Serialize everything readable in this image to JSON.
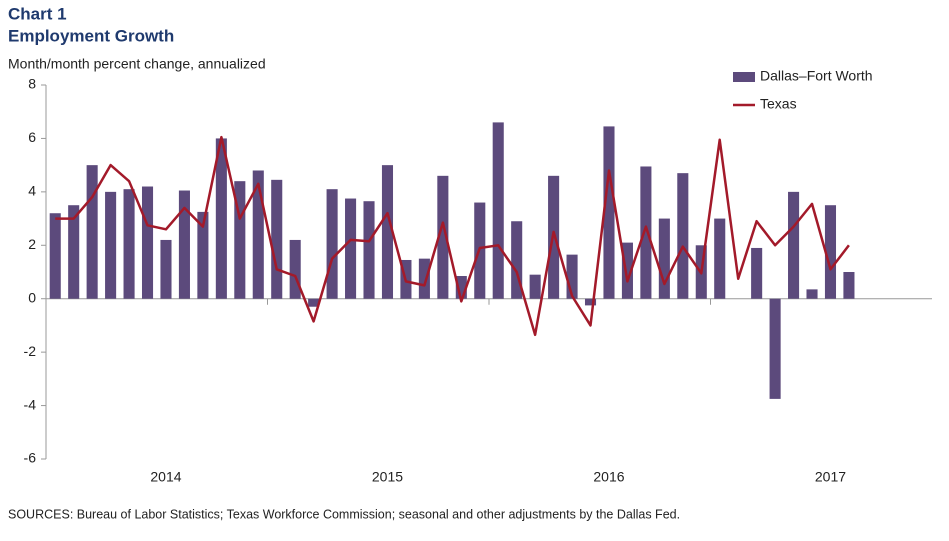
{
  "chart_data": {
    "type": "bar",
    "title": "Chart 1",
    "subtitle": "Employment Growth",
    "y_label": "Month/month  percent change, annualized",
    "source": "SOURCES: Bureau of  Labor Statistics; Texas Workforce Commission; seasonal and other adjustments by the Dallas Fed.",
    "categories": [
      null,
      null,
      null,
      null,
      null,
      null,
      "2014",
      null,
      null,
      null,
      null,
      null,
      null,
      null,
      null,
      null,
      null,
      null,
      "2015",
      null,
      null,
      null,
      null,
      null,
      null,
      null,
      null,
      null,
      null,
      null,
      "2016",
      null,
      null,
      null,
      null,
      null,
      null,
      null,
      null,
      null,
      null,
      null,
      "2017",
      null,
      null,
      null,
      null,
      null
    ],
    "series": [
      {
        "name": "Dallas–Fort Worth",
        "color": "#5c4a7c",
        "type": "bar",
        "values": [
          3.2,
          3.5,
          5.0,
          4.0,
          4.1,
          4.2,
          2.2,
          4.05,
          3.25,
          6.0,
          4.4,
          4.8,
          4.45,
          2.2,
          -0.3,
          4.1,
          3.75,
          3.65,
          5.0,
          1.45,
          1.5,
          4.6,
          0.85,
          3.6,
          6.6,
          2.9,
          0.9,
          4.6,
          1.65,
          -0.25,
          6.45,
          2.1,
          4.95,
          3.0,
          4.7,
          2.0,
          3.0,
          0,
          1.9,
          -3.75,
          4.0,
          0.35,
          3.5,
          1.0,
          null,
          null,
          null,
          null
        ]
      },
      {
        "name": "Texas",
        "color": "#a31a2a",
        "type": "line",
        "values": [
          3.0,
          3.0,
          3.8,
          5.0,
          4.4,
          2.75,
          2.6,
          3.4,
          2.7,
          6.05,
          3.0,
          4.3,
          1.1,
          0.85,
          -0.85,
          1.5,
          2.2,
          2.15,
          3.2,
          0.65,
          0.5,
          2.85,
          -0.1,
          1.9,
          2.0,
          1.0,
          -1.35,
          2.5,
          0.1,
          -1.0,
          4.8,
          0.65,
          2.7,
          0.55,
          1.95,
          0.95,
          5.95,
          0.75,
          2.9,
          2.0,
          2.7,
          3.55,
          1.1,
          2.0,
          null,
          null,
          null,
          null
        ]
      }
    ],
    "ylim": [
      -6,
      8
    ],
    "yticks": [
      -6,
      -4,
      -2,
      0,
      2,
      4,
      6,
      8
    ],
    "grid": false,
    "legend": "upper right"
  }
}
